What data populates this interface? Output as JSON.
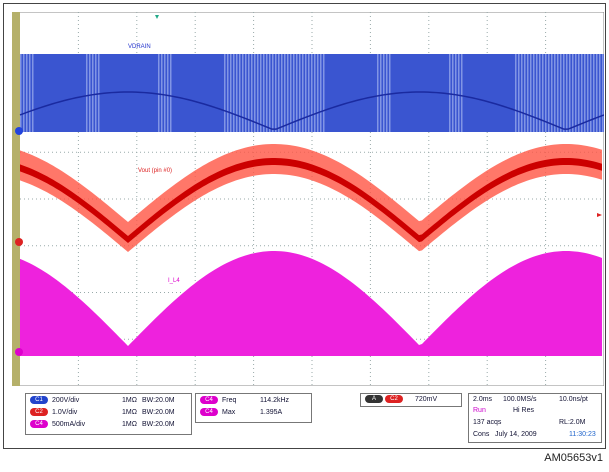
{
  "screen": {
    "traces": [
      "VDRAIN",
      "Vout (pin #0)",
      "I_L4"
    ]
  },
  "panel": {
    "channels": [
      {
        "id": "C1",
        "scale": "200V/div",
        "impedance": "1MΩ",
        "bandwidth": "BW:20.0M"
      },
      {
        "id": "C2",
        "scale": "1.0V/div",
        "impedance": "1MΩ",
        "bandwidth": "BW:20.0M"
      },
      {
        "id": "C4",
        "scale": "500mA/div",
        "impedance": "1MΩ",
        "bandwidth": "BW:20.0M"
      }
    ],
    "measurements": [
      {
        "id": "C4",
        "name": "Freq",
        "value": "114.2kHz"
      },
      {
        "id": "C4",
        "name": "Max",
        "value": "1.395A"
      }
    ],
    "trigger": {
      "mode": "A",
      "channel": "C2",
      "level": "720mV"
    },
    "timebase": {
      "scale": "2.0ms",
      "rate": "100.0MS/s",
      "resolution": "10.0ns/pt",
      "state": "Run",
      "mode": "Hi Res",
      "acqs": "137 acqs",
      "record": "RL:2.0M",
      "cons": "Cons",
      "date": "July 14, 2009",
      "time": "11:30:23"
    }
  },
  "figure_id": "AM05653v1"
}
